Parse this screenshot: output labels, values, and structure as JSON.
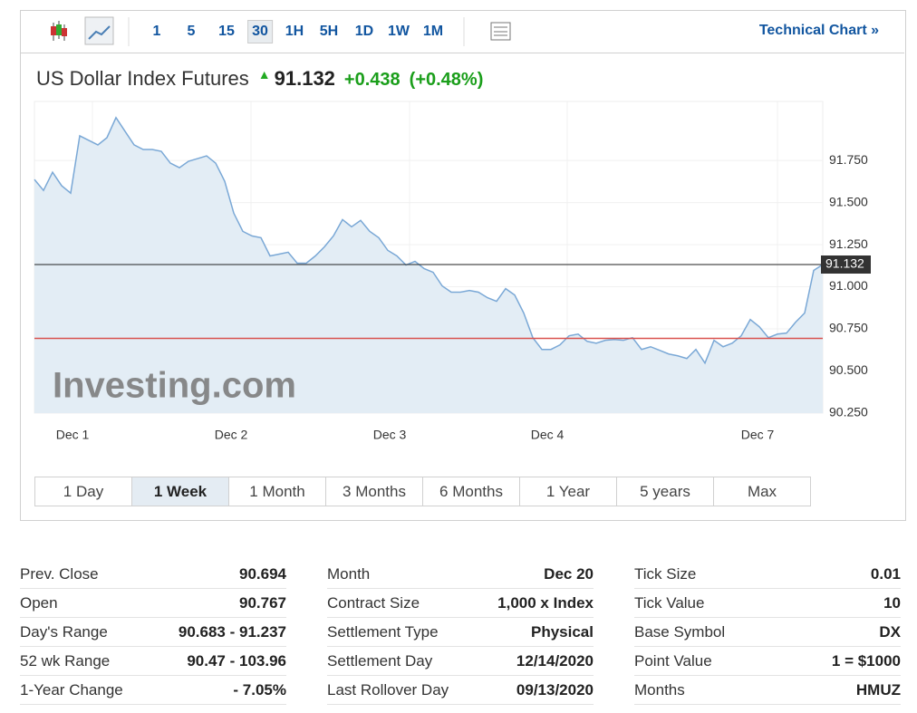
{
  "toolbar": {
    "intervals": [
      "1",
      "5",
      "15",
      "30",
      "1H",
      "5H",
      "1D",
      "1W",
      "1M"
    ],
    "active_interval": 3,
    "link": "Technical Chart »"
  },
  "header": {
    "title": "US Dollar Index Futures",
    "price": "91.132",
    "change": "+0.438",
    "change_percent": "(+0.48%)"
  },
  "chart": {
    "type": "line",
    "color": "#7aa8d6",
    "watermark": "Investing.com",
    "values": [
      91.637,
      91.572,
      91.68,
      91.6,
      91.556,
      91.896,
      91.869,
      91.842,
      91.885,
      92.004,
      91.923,
      91.842,
      91.815,
      91.815,
      91.804,
      91.734,
      91.707,
      91.745,
      91.761,
      91.777,
      91.734,
      91.626,
      91.437,
      91.329,
      91.302,
      91.291,
      91.183,
      91.194,
      91.205,
      91.14,
      91.14,
      91.183,
      91.237,
      91.302,
      91.399,
      91.356,
      91.394,
      91.329,
      91.291,
      91.216,
      91.183,
      91.129,
      91.151,
      91.108,
      91.086,
      91.005,
      90.968,
      90.968,
      90.978,
      90.968,
      90.935,
      90.914,
      90.989,
      90.951,
      90.844,
      90.698,
      90.628,
      90.628,
      90.655,
      90.709,
      90.719,
      90.676,
      90.665,
      90.682,
      90.687,
      90.682,
      90.698,
      90.628,
      90.644,
      90.623,
      90.601,
      90.59,
      90.574,
      90.628,
      90.547,
      90.682,
      90.644,
      90.665,
      90.709,
      90.806,
      90.763,
      90.698,
      90.719,
      90.725,
      90.79,
      90.844,
      91.097,
      91.132
    ],
    "xlim": [
      0,
      87
    ],
    "xticks": [
      {
        "value": 4.2,
        "label": "Dec 1"
      },
      {
        "value": 21.7,
        "label": "Dec 2"
      },
      {
        "value": 39.2,
        "label": "Dec 3"
      },
      {
        "value": 56.6,
        "label": "Dec 4"
      },
      {
        "value": 79.8,
        "label": "Dec 7"
      }
    ],
    "ylim": [
      90.25,
      92.1
    ],
    "yticks": [
      {
        "value": 90.25,
        "label": "90.250"
      },
      {
        "value": 90.5,
        "label": "90.500"
      },
      {
        "value": 90.75,
        "label": "90.750"
      },
      {
        "value": 91,
        "label": "91.000"
      },
      {
        "value": 91.25,
        "label": "91.250"
      },
      {
        "value": 91.5,
        "label": "91.500"
      },
      {
        "value": 91.75,
        "label": "91.750"
      }
    ],
    "last_price": 91.132,
    "prev_close_line": 90.694
  },
  "ranges": {
    "buttons": [
      "1 Day",
      "1 Week",
      "1 Month",
      "3 Months",
      "6 Months",
      "1 Year",
      "5 years",
      "Max"
    ],
    "active": 1
  },
  "stats": [
    [
      [
        "Prev. Close",
        "90.694"
      ],
      [
        "Open",
        "90.767"
      ],
      [
        "Day's Range",
        "90.683 - 91.237"
      ],
      [
        "52 wk Range",
        "90.47 - 103.96"
      ],
      [
        "1-Year Change",
        "- 7.05%"
      ]
    ],
    [
      [
        "Month",
        "Dec 20"
      ],
      [
        "Contract Size",
        "1,000 x Index"
      ],
      [
        "Settlement Type",
        "Physical"
      ],
      [
        "Settlement Day",
        "12/14/2020"
      ],
      [
        "Last Rollover Day",
        "09/13/2020"
      ]
    ],
    [
      [
        "Tick Size",
        "0.01"
      ],
      [
        "Tick Value",
        "10"
      ],
      [
        "Base Symbol",
        "DX"
      ],
      [
        "Point Value",
        "1 = $1000"
      ],
      [
        "Months",
        "HMUZ"
      ]
    ]
  ]
}
